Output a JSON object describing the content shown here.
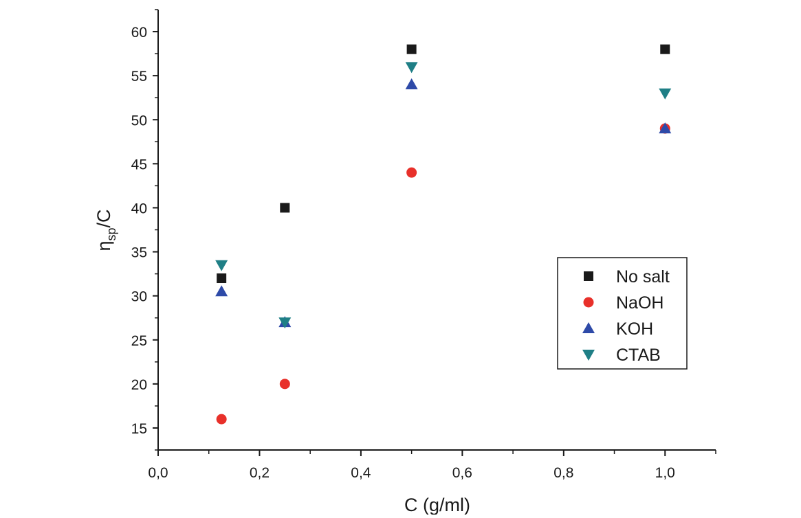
{
  "chart_data": {
    "type": "scatter",
    "xlabel": "C (g/ml)",
    "ylabel_main": "η",
    "ylabel_sub": "sp",
    "ylabel_rest": "/C",
    "xlim": [
      0.0,
      1.1
    ],
    "ylim": [
      12.5,
      62.5
    ],
    "x_ticks": [
      "0,0",
      "0,2",
      "0,4",
      "0,6",
      "0,8",
      "1,0"
    ],
    "x_tick_values": [
      0.0,
      0.2,
      0.4,
      0.6,
      0.8,
      1.0
    ],
    "y_ticks": [
      "15",
      "20",
      "25",
      "30",
      "35",
      "40",
      "45",
      "50",
      "55",
      "60"
    ],
    "y_tick_values": [
      15,
      20,
      25,
      30,
      35,
      40,
      45,
      50,
      55,
      60
    ],
    "grid": false,
    "legend_position": "right",
    "series": [
      {
        "name": "No salt",
        "marker": "square",
        "color": "#1a1a1a",
        "x": [
          0.125,
          0.25,
          0.5,
          1.0
        ],
        "y": [
          32,
          40,
          58,
          58
        ]
      },
      {
        "name": "NaOH",
        "marker": "circle",
        "color": "#e8302a",
        "x": [
          0.125,
          0.25,
          0.5,
          1.0
        ],
        "y": [
          16,
          20,
          44,
          49
        ]
      },
      {
        "name": "KOH",
        "marker": "triangle-up",
        "color": "#2e4aa8",
        "x": [
          0.125,
          0.25,
          0.5,
          1.0
        ],
        "y": [
          30.5,
          27,
          54,
          49
        ]
      },
      {
        "name": "CTAB",
        "marker": "triangle-down",
        "color": "#1f7f86",
        "x": [
          0.125,
          0.25,
          0.5,
          1.0
        ],
        "y": [
          33.5,
          27,
          56,
          53
        ]
      }
    ]
  }
}
